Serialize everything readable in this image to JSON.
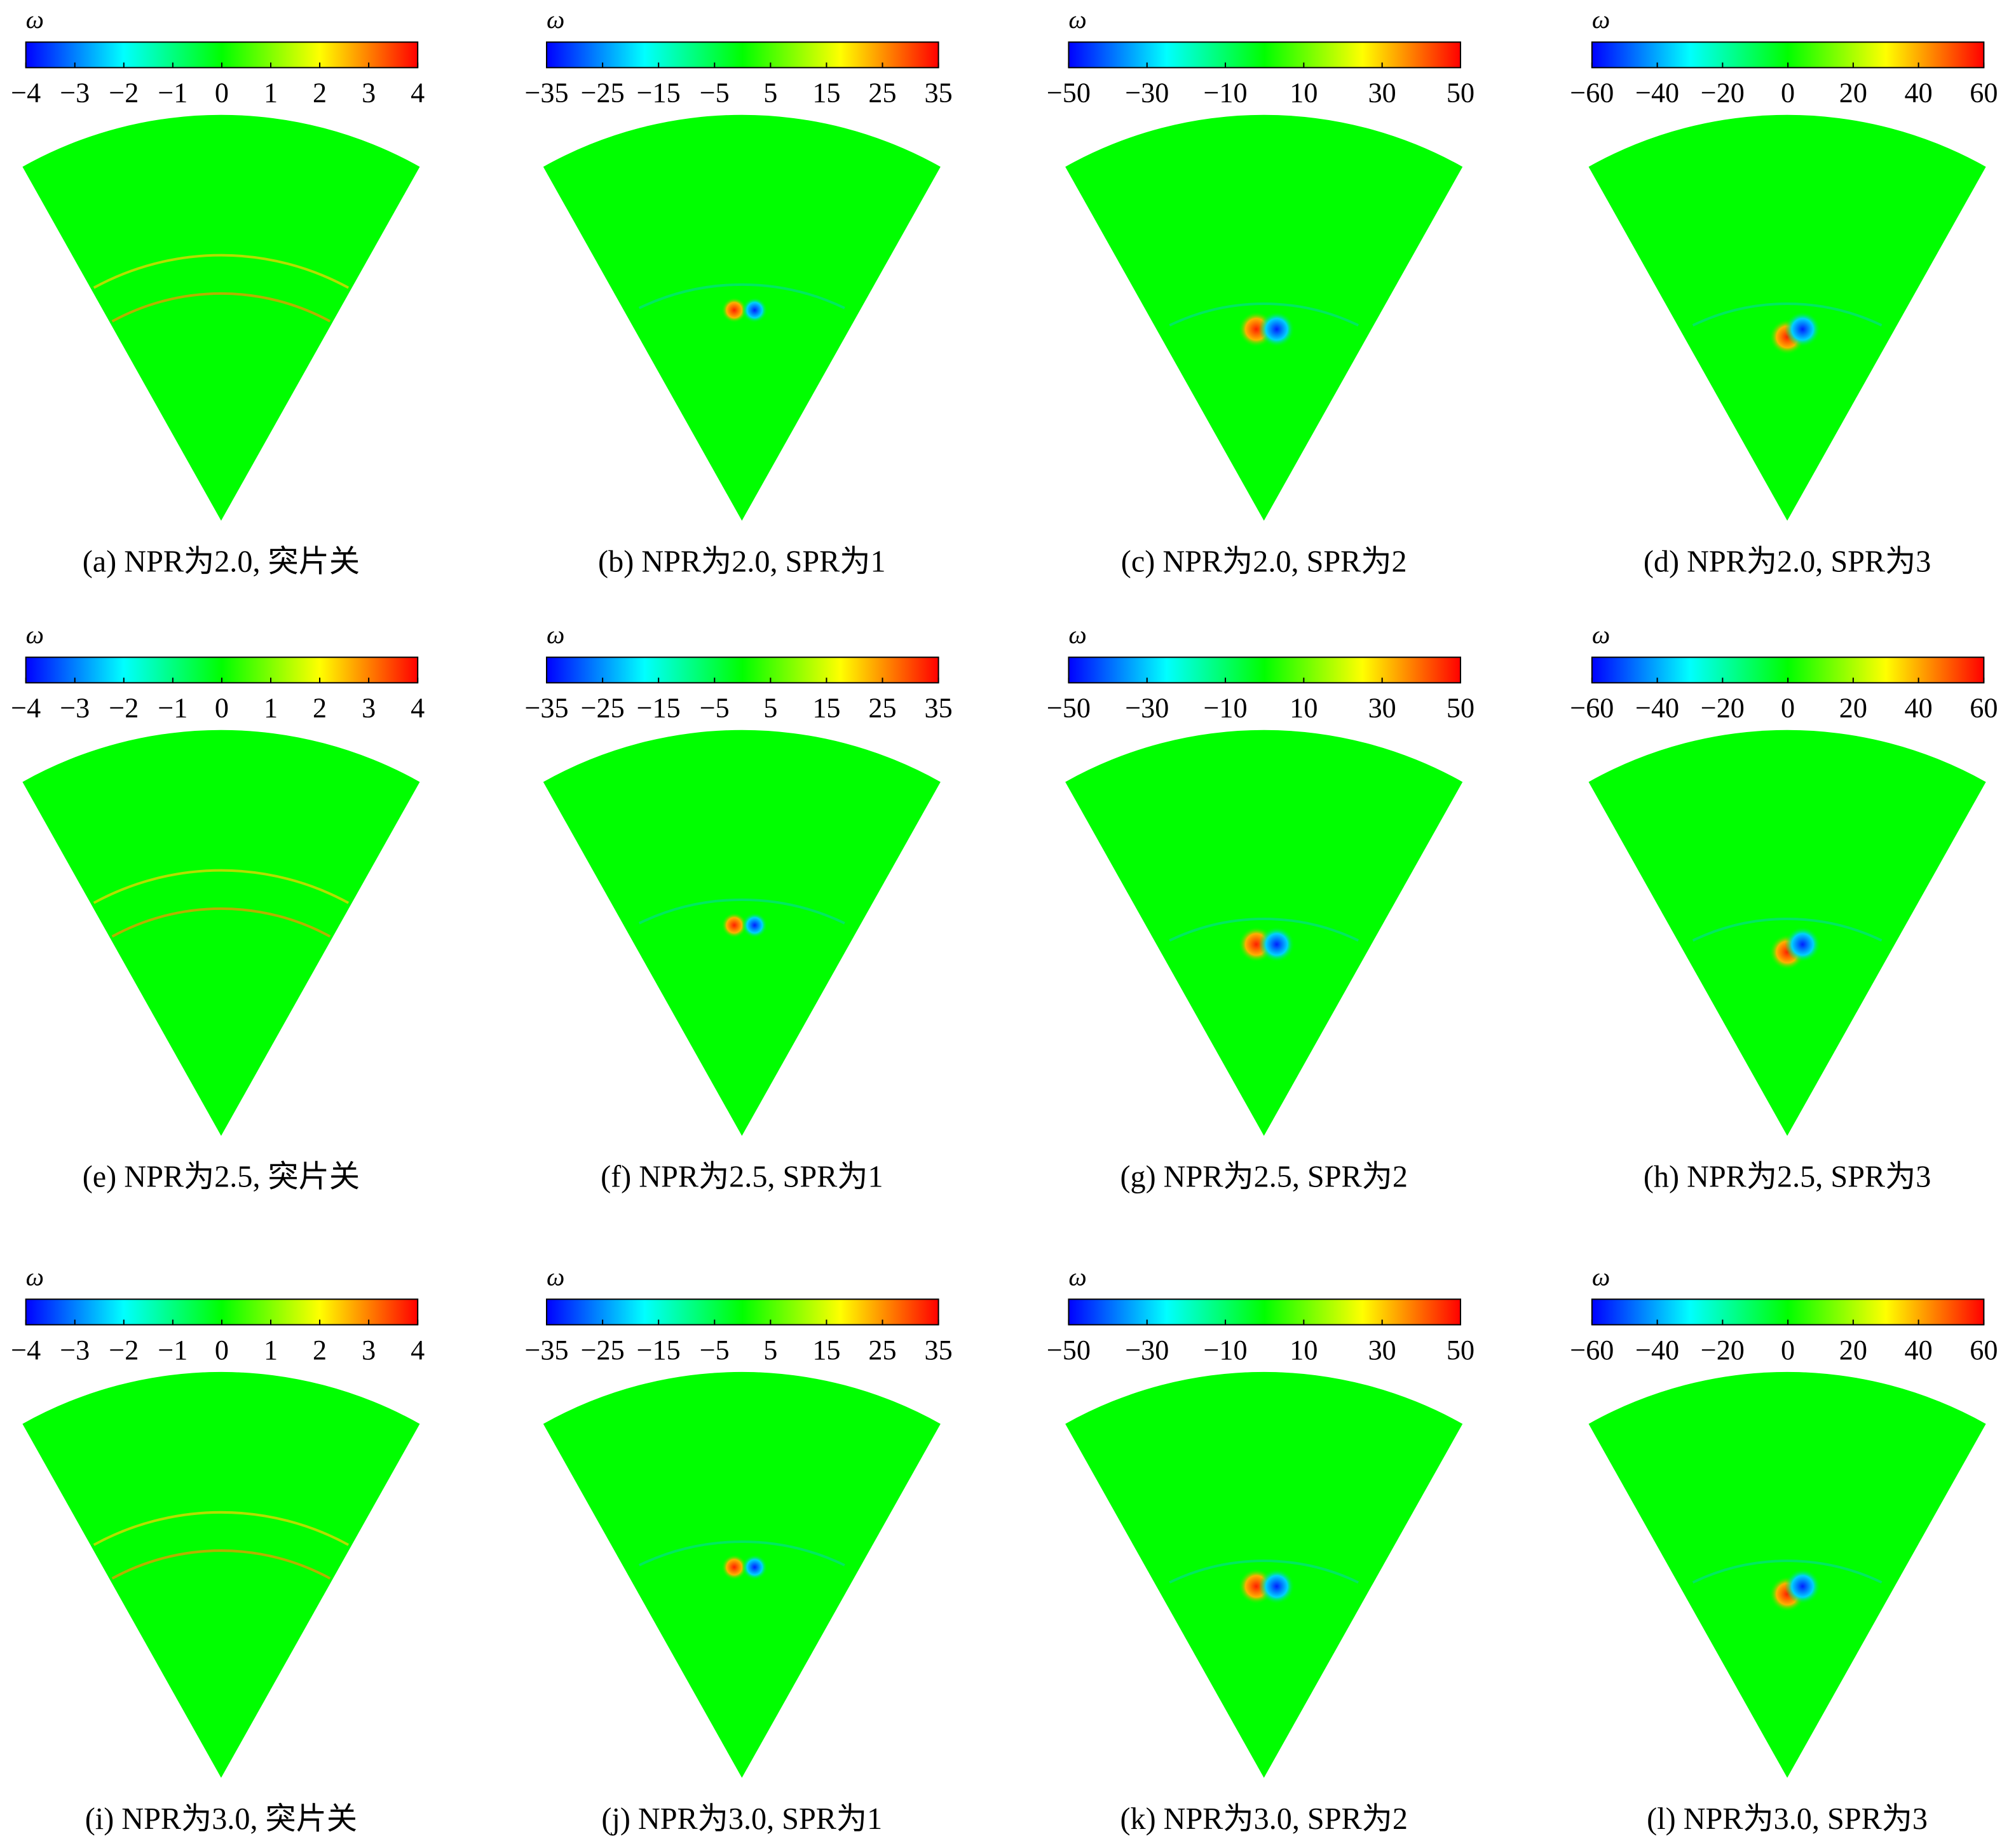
{
  "panels": [
    {
      "caption": "(a) NPR为2.0, 突片关",
      "colorbar": {
        "title": "ω",
        "range": [
          -4,
          4
        ],
        "ticks": [
          {
            "value": -4,
            "label": "−4"
          },
          {
            "value": -3,
            "label": "−3"
          },
          {
            "value": -2,
            "label": "−2"
          },
          {
            "value": -1,
            "label": "−1"
          },
          0,
          1,
          2,
          3,
          4
        ]
      }
    },
    {
      "caption": "(b) NPR为2.0, SPR为1",
      "colorbar": {
        "title": "ω",
        "range": [
          -35,
          35
        ],
        "ticks": [
          {
            "value": -35,
            "label": "−35"
          },
          {
            "value": -25,
            "label": "−25"
          },
          {
            "value": -15,
            "label": "−15"
          },
          {
            "value": -5,
            "label": "−5"
          },
          5,
          15,
          25,
          35
        ]
      }
    },
    {
      "caption": "(c) NPR为2.0, SPR为2",
      "colorbar": {
        "title": "ω",
        "range": [
          -50,
          50
        ],
        "ticks": [
          {
            "value": -50,
            "label": "−50"
          },
          {
            "value": -30,
            "label": "−30"
          },
          {
            "value": -10,
            "label": "−10"
          },
          10,
          30,
          50
        ]
      }
    },
    {
      "caption": "(d) NPR为2.0, SPR为3",
      "colorbar": {
        "title": "ω",
        "range": [
          -60,
          60
        ],
        "ticks": [
          {
            "value": -60,
            "label": "−60"
          },
          {
            "value": -40,
            "label": "−40"
          },
          {
            "value": -20,
            "label": "−20"
          },
          0,
          20,
          40,
          60
        ]
      }
    },
    {
      "caption": "(e) NPR为2.5, 突片关",
      "colorbar": {
        "title": "ω",
        "range": [
          -4,
          4
        ],
        "ticks": [
          {
            "value": -4,
            "label": "−4"
          },
          {
            "value": -3,
            "label": "−3"
          },
          {
            "value": -2,
            "label": "−2"
          },
          {
            "value": -1,
            "label": "−1"
          },
          0,
          1,
          2,
          3,
          4
        ]
      }
    },
    {
      "caption": "(f) NPR为2.5, SPR为1",
      "colorbar": {
        "title": "ω",
        "range": [
          -35,
          35
        ],
        "ticks": [
          {
            "value": -35,
            "label": "−35"
          },
          {
            "value": -25,
            "label": "−25"
          },
          {
            "value": -15,
            "label": "−15"
          },
          {
            "value": -5,
            "label": "−5"
          },
          5,
          15,
          25,
          35
        ]
      }
    },
    {
      "caption": "(g) NPR为2.5, SPR为2",
      "colorbar": {
        "title": "ω",
        "range": [
          -50,
          50
        ],
        "ticks": [
          {
            "value": -50,
            "label": "−50"
          },
          {
            "value": -30,
            "label": "−30"
          },
          {
            "value": -10,
            "label": "−10"
          },
          10,
          30,
          50
        ]
      }
    },
    {
      "caption": "(h) NPR为2.5, SPR为3",
      "colorbar": {
        "title": "ω",
        "range": [
          -60,
          60
        ],
        "ticks": [
          {
            "value": -60,
            "label": "−60"
          },
          {
            "value": -40,
            "label": "−40"
          },
          {
            "value": -20,
            "label": "−20"
          },
          0,
          20,
          40,
          60
        ]
      }
    },
    {
      "caption": "(i) NPR为3.0, 突片关",
      "colorbar": {
        "title": "ω",
        "range": [
          -4,
          4
        ],
        "ticks": [
          {
            "value": -4,
            "label": "−4"
          },
          {
            "value": -3,
            "label": "−3"
          },
          {
            "value": -2,
            "label": "−2"
          },
          {
            "value": -1,
            "label": "−1"
          },
          0,
          1,
          2,
          3,
          4
        ]
      }
    },
    {
      "caption": "(j) NPR为3.0, SPR为1",
      "colorbar": {
        "title": "ω",
        "range": [
          -35,
          35
        ],
        "ticks": [
          {
            "value": -35,
            "label": "−35"
          },
          {
            "value": -25,
            "label": "−25"
          },
          {
            "value": -15,
            "label": "−15"
          },
          {
            "value": -5,
            "label": "−5"
          },
          5,
          15,
          25,
          35
        ]
      }
    },
    {
      "caption": "(k) NPR为3.0, SPR为2",
      "colorbar": {
        "title": "ω",
        "range": [
          -50,
          50
        ],
        "ticks": [
          {
            "value": -50,
            "label": "−50"
          },
          {
            "value": -30,
            "label": "−30"
          },
          {
            "value": -10,
            "label": "−10"
          },
          10,
          30,
          50
        ]
      }
    },
    {
      "caption": "(l) NPR为3.0, SPR为3",
      "colorbar": {
        "title": "ω",
        "range": [
          -60,
          60
        ],
        "ticks": [
          {
            "value": -60,
            "label": "−60"
          },
          {
            "value": -40,
            "label": "−40"
          },
          {
            "value": -20,
            "label": "−20"
          },
          0,
          20,
          40,
          60
        ]
      }
    }
  ]
}
